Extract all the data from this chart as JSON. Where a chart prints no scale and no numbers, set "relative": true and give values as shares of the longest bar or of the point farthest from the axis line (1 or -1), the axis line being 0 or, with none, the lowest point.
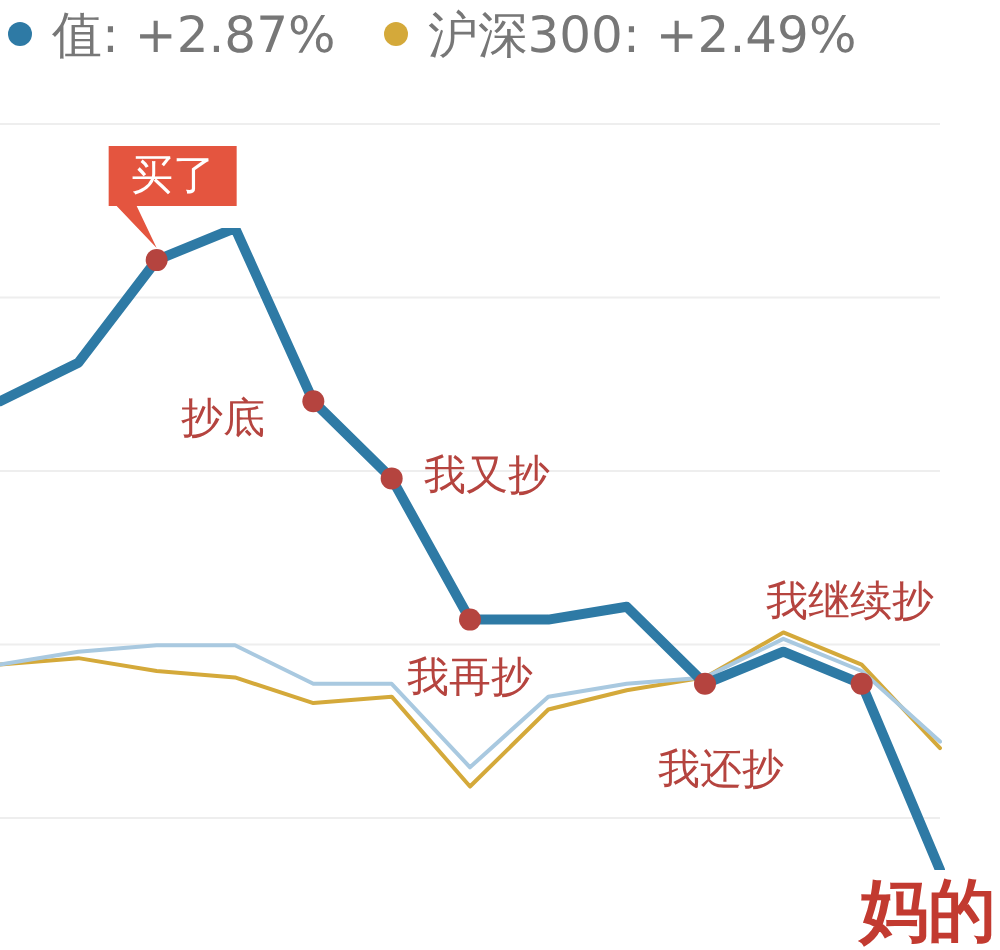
{
  "chart_data": {
    "type": "line",
    "relative": true,
    "categories": [
      null,
      null,
      null,
      null,
      null,
      null,
      null,
      null,
      null,
      null,
      null,
      null,
      null
    ],
    "grid": true,
    "legend": "top",
    "line_style": "solid",
    "series": [
      {
        "name": "值: +2.87%",
        "color": "#2e7aa5",
        "values": [
          0.73,
          0.79,
          0.95,
          1,
          0.73,
          0.61,
          0.39,
          0.39,
          0.41,
          0.29,
          0.34,
          0.29,
          0
        ]
      },
      {
        "color": "#a9c9e0",
        "values": [
          0.32,
          0.34,
          0.35,
          0.35,
          0.29,
          0.29,
          0.16,
          0.27,
          0.29,
          0.3,
          0.36,
          0.31,
          0.2
        ]
      },
      {
        "name": "沪深300: +2.49%",
        "color": "#d4a93a",
        "values": [
          0.32,
          0.33,
          0.31,
          0.3,
          0.26,
          0.27,
          0.13,
          0.25,
          0.28,
          0.3,
          0.37,
          0.32,
          0.19
        ]
      }
    ],
    "annotations": [
      "买了",
      "抄底",
      "我又抄",
      "我再抄",
      "我还抄",
      "我继续抄",
      "妈的"
    ]
  }
}
